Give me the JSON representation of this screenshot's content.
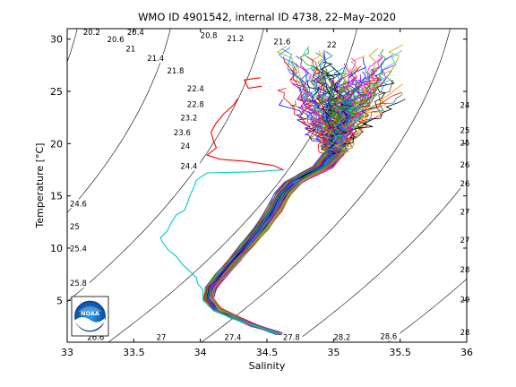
{
  "chart_data": {
    "type": "line",
    "title": "WMO ID 4901542, internal ID 4738, 22–May–2020",
    "xlabel": "Salinity",
    "ylabel": "Temperature [°C]",
    "xlim": [
      33,
      36
    ],
    "ylim": [
      1,
      31
    ],
    "xticks": [
      "33",
      "33.5",
      "34",
      "34.5",
      "35",
      "35.5",
      "36"
    ],
    "yticks": [
      "5",
      "10",
      "15",
      "20",
      "25",
      "30"
    ],
    "grid": false,
    "density_contour_labels": [
      {
        "text": "20.2",
        "s": 33.12,
        "t": 30.4
      },
      {
        "text": "20.4",
        "s": 33.45,
        "t": 30.4
      },
      {
        "text": "20.6",
        "s": 33.3,
        "t": 29.7
      },
      {
        "text": "20.8",
        "s": 34.0,
        "t": 30.1
      },
      {
        "text": "21",
        "s": 33.44,
        "t": 28.8
      },
      {
        "text": "21.2",
        "s": 34.2,
        "t": 29.8
      },
      {
        "text": "21.4",
        "s": 33.6,
        "t": 27.9
      },
      {
        "text": "21.6",
        "s": 34.55,
        "t": 29.5
      },
      {
        "text": "21.8",
        "s": 33.75,
        "t": 26.7
      },
      {
        "text": "22",
        "s": 34.95,
        "t": 29.2
      },
      {
        "text": "22.4",
        "s": 33.9,
        "t": 25.0
      },
      {
        "text": "22.8",
        "s": 33.9,
        "t": 23.5
      },
      {
        "text": "23.2",
        "s": 33.85,
        "t": 22.2
      },
      {
        "text": "23.6",
        "s": 33.8,
        "t": 20.8
      },
      {
        "text": "24",
        "s": 33.85,
        "t": 19.5
      },
      {
        "text": "24.4",
        "s": 33.85,
        "t": 17.6
      },
      {
        "text": "24.6",
        "s": 33.02,
        "t": 14.0
      },
      {
        "text": "25",
        "s": 33.02,
        "t": 11.8
      },
      {
        "text": "25.4",
        "s": 33.02,
        "t": 9.7
      },
      {
        "text": "25.8",
        "s": 33.02,
        "t": 6.4
      },
      {
        "text": "26.6",
        "s": 33.15,
        "t": 1.2
      },
      {
        "text": "27",
        "s": 33.67,
        "t": 1.2
      },
      {
        "text": "27.4",
        "s": 34.18,
        "t": 1.2
      },
      {
        "text": "27.8",
        "s": 34.62,
        "t": 1.2
      },
      {
        "text": "28.2",
        "s": 35.0,
        "t": 1.2
      },
      {
        "text": "28.6",
        "s": 35.35,
        "t": 1.3
      },
      {
        "text": "28",
        "s": 35.95,
        "t": 1.7
      },
      {
        "text": "29",
        "s": 35.95,
        "t": 4.8
      },
      {
        "text": "28",
        "s": 35.95,
        "t": 7.7
      },
      {
        "text": "27",
        "s": 35.95,
        "t": 10.5
      },
      {
        "text": "27",
        "s": 35.95,
        "t": 13.2
      },
      {
        "text": "26",
        "s": 35.95,
        "t": 15.9
      },
      {
        "text": "26",
        "s": 35.95,
        "t": 17.7
      },
      {
        "text": "25",
        "s": 35.95,
        "t": 19.8
      },
      {
        "text": "25",
        "s": 35.95,
        "t": 21.0
      },
      {
        "text": "24",
        "s": 35.95,
        "t": 23.4
      }
    ],
    "profile_colors": [
      "#0000ff",
      "#ff0000",
      "#00aa00",
      "#ff00ff",
      "#00cccc",
      "#000000",
      "#ff8800",
      "#8800ff",
      "#008888",
      "#884400",
      "#aaaa00",
      "#0088ff",
      "#ff0088",
      "#448800"
    ],
    "highlight_profiles": [
      {
        "color": "#00cccc",
        "points": [
          [
            34.63,
            17.5
          ],
          [
            34.4,
            17.3
          ],
          [
            34.05,
            17.2
          ],
          [
            33.97,
            16.5
          ],
          [
            33.95,
            15.8
          ],
          [
            33.92,
            15.0
          ],
          [
            33.9,
            14.2
          ],
          [
            33.88,
            13.6
          ],
          [
            33.82,
            13.2
          ],
          [
            33.78,
            12.4
          ],
          [
            33.75,
            11.6
          ],
          [
            33.7,
            11.0
          ],
          [
            33.72,
            10.5
          ],
          [
            33.76,
            9.8
          ],
          [
            33.82,
            9.2
          ],
          [
            33.86,
            8.5
          ],
          [
            33.92,
            7.8
          ],
          [
            33.97,
            7.2
          ],
          [
            33.98,
            6.6
          ],
          [
            34.02,
            6.0
          ],
          [
            34.02,
            5.0
          ],
          [
            34.1,
            4.0
          ],
          [
            34.3,
            3.0
          ],
          [
            34.6,
            1.8
          ]
        ]
      },
      {
        "color": "#ff0000",
        "points": [
          [
            34.28,
            24.3
          ],
          [
            34.25,
            23.7
          ],
          [
            34.18,
            22.9
          ],
          [
            34.12,
            22.0
          ],
          [
            34.08,
            21.1
          ],
          [
            34.1,
            20.2
          ],
          [
            34.12,
            19.6
          ],
          [
            34.05,
            18.9
          ],
          [
            34.15,
            18.5
          ],
          [
            34.35,
            18.3
          ],
          [
            34.55,
            17.9
          ],
          [
            34.62,
            17.5
          ]
        ]
      },
      {
        "color": "#ff0000",
        "points": [
          [
            34.45,
            26.3
          ],
          [
            34.33,
            26.1
          ],
          [
            34.36,
            25.3
          ],
          [
            34.46,
            25.5
          ]
        ]
      }
    ],
    "profile_envelope": {
      "deep_end": [
        34.6,
        1.8
      ],
      "bend": [
        34.08,
        5.5
      ],
      "upper_spread": [
        [
          34.6,
          35.5
        ],
        [
          26.0,
          29.5
        ]
      ]
    },
    "legend": "none",
    "logo": "NOAA"
  }
}
